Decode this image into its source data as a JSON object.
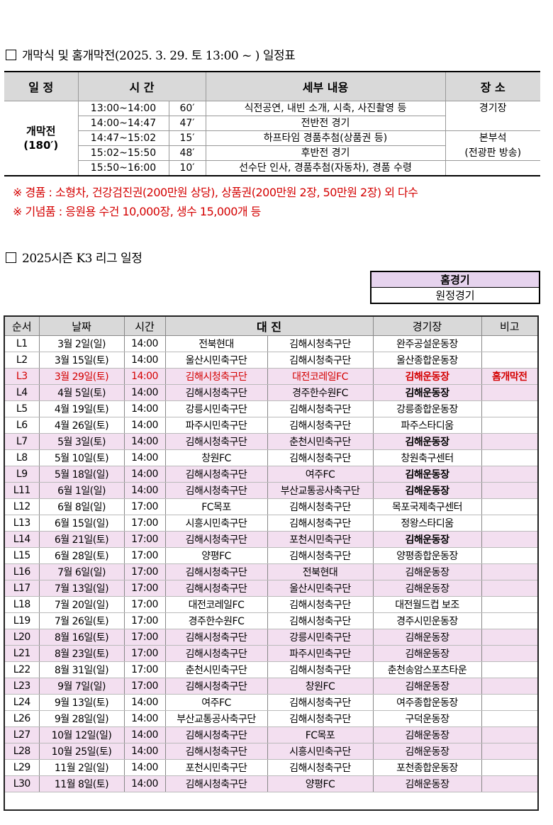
{
  "section1": {
    "title": "개막식 및 홈개막전(2025. 3. 29. 토 13:00 ~ ) 일정표",
    "headers": [
      "일 정",
      "시 간",
      "세부 내용",
      "장 소"
    ],
    "phase": "개막전",
    "phase_duration": "(180′)",
    "rows": [
      {
        "time": "13:00~14:00",
        "dur": "60′",
        "detail": "식전공연, 내빈 소개, 시축, 사진촬영 등",
        "place": "경기장"
      },
      {
        "time": "14:00~14:47",
        "dur": "47′",
        "detail": "전반전 경기",
        "place": ""
      },
      {
        "time": "14:47~15:02",
        "dur": "15′",
        "detail": "하프타임 경품추첨(상품권 등)",
        "place": "본부석"
      },
      {
        "time": "15:02~15:50",
        "dur": "48′",
        "detail": "후반전 경기",
        "place": "(전광판 방송)"
      },
      {
        "time": "15:50~16:00",
        "dur": "10′",
        "detail": "선수단 인사, 경품추첨(자동차), 경품 수령",
        "place": ""
      }
    ],
    "note1": "※ 경품 : 소형차, 건강검진권(200만원 상당), 상품권(200만원 2장, 50만원 2장) 외 다수",
    "note2": "※ 기념품 : 응원용 수건 10,000장, 생수 15,000개 등"
  },
  "section2": {
    "title": "2025시즌 K3 리그 일정",
    "legend": {
      "home": "홈경기",
      "away": "원정경기"
    },
    "headers": [
      "순서",
      "날짜",
      "시간",
      "대 진",
      "경기장",
      "비고"
    ],
    "colors": {
      "home_bg": "#f3dff0",
      "highlight": "#d40000",
      "header_bg": "#d9d9d9"
    },
    "rows": [
      [
        "L1",
        "3월 2일(일)",
        "14:00",
        "전북현대",
        "김해시청축구단",
        "완주공설운동장",
        "",
        "away"
      ],
      [
        "L2",
        "3월 15일(토)",
        "14:00",
        "울산시민축구단",
        "김해시청축구단",
        "울산종합운동장",
        "",
        "away"
      ],
      [
        "L3",
        "3월 29일(토)",
        "14:00",
        "김해시청축구단",
        "대전코레일FC",
        "김해운동장",
        "홈개막전",
        "hl"
      ],
      [
        "L4",
        "4월 5일(토)",
        "14:00",
        "김해시청축구단",
        "경주한수원FC",
        "김해운동장",
        "",
        "homeb"
      ],
      [
        "L5",
        "4월 19일(토)",
        "14:00",
        "강릉시민축구단",
        "김해시청축구단",
        "강릉종합운동장",
        "",
        "away"
      ],
      [
        "L6",
        "4월 26일(토)",
        "14:00",
        "파주시민축구단",
        "김해시청축구단",
        "파주스타디움",
        "",
        "away"
      ],
      [
        "L7",
        "5월 3일(토)",
        "14:00",
        "김해시청축구단",
        "춘천시민축구단",
        "김해운동장",
        "",
        "homeb"
      ],
      [
        "L8",
        "5월 10일(토)",
        "14:00",
        "창원FC",
        "김해시청축구단",
        "창원축구센터",
        "",
        "away"
      ],
      [
        "L9",
        "5월 18일(일)",
        "14:00",
        "김해시청축구단",
        "여주FC",
        "김해운동장",
        "",
        "homeb"
      ],
      [
        "L11",
        "6월 1일(일)",
        "14:00",
        "김해시청축구단",
        "부산교통공사축구단",
        "김해운동장",
        "",
        "homeb"
      ],
      [
        "L12",
        "6월 8일(일)",
        "17:00",
        "FC목포",
        "김해시청축구단",
        "목포국제축구센터",
        "",
        "away"
      ],
      [
        "L13",
        "6월 15일(일)",
        "17:00",
        "시흥시민축구단",
        "김해시청축구단",
        "정왕스타디움",
        "",
        "away"
      ],
      [
        "L14",
        "6월 21일(토)",
        "17:00",
        "김해시청축구단",
        "포천시민축구단",
        "김해운동장",
        "",
        "homeb"
      ],
      [
        "L15",
        "6월 28일(토)",
        "17:00",
        "양평FC",
        "김해시청축구단",
        "양평종합운동장",
        "",
        "away"
      ],
      [
        "L16",
        "7월 6일(일)",
        "17:00",
        "김해시청축구단",
        "전북현대",
        "김해운동장",
        "",
        "home"
      ],
      [
        "L17",
        "7월 13일(일)",
        "17:00",
        "김해시청축구단",
        "울산시민축구단",
        "김해운동장",
        "",
        "home"
      ],
      [
        "L18",
        "7월 20일(일)",
        "17:00",
        "대전코레일FC",
        "김해시청축구단",
        "대전월드컵 보조",
        "",
        "away"
      ],
      [
        "L19",
        "7월 26일(토)",
        "17:00",
        "경주한수원FC",
        "김해시청축구단",
        "경주시민운동장",
        "",
        "away"
      ],
      [
        "L20",
        "8월 16일(토)",
        "17:00",
        "김해시청축구단",
        "강릉시민축구단",
        "김해운동장",
        "",
        "home"
      ],
      [
        "L21",
        "8월 23일(토)",
        "17:00",
        "김해시청축구단",
        "파주시민축구단",
        "김해운동장",
        "",
        "home"
      ],
      [
        "L22",
        "8월 31일(일)",
        "17:00",
        "춘천시민축구단",
        "김해시청축구단",
        "춘천송암스포츠타운",
        "",
        "away"
      ],
      [
        "L23",
        "9월 7일(일)",
        "17:00",
        "김해시청축구단",
        "창원FC",
        "김해운동장",
        "",
        "home"
      ],
      [
        "L24",
        "9월 13일(토)",
        "14:00",
        "여주FC",
        "김해시청축구단",
        "여주종합운동장",
        "",
        "away"
      ],
      [
        "L26",
        "9월 28일(일)",
        "14:00",
        "부산교통공사축구단",
        "김해시청축구단",
        "구덕운동장",
        "",
        "away"
      ],
      [
        "L27",
        "10월 12일(일)",
        "14:00",
        "김해시청축구단",
        "FC목포",
        "김해운동장",
        "",
        "home"
      ],
      [
        "L28",
        "10월 25일(토)",
        "14:00",
        "김해시청축구단",
        "시흥시민축구단",
        "김해운동장",
        "",
        "home"
      ],
      [
        "L29",
        "11월 2일(일)",
        "14:00",
        "포천시민축구단",
        "김해시청축구단",
        "포천종합운동장",
        "",
        "away"
      ],
      [
        "L30",
        "11월 8일(토)",
        "14:00",
        "김해시청축구단",
        "양평FC",
        "김해운동장",
        "",
        "home"
      ]
    ]
  }
}
